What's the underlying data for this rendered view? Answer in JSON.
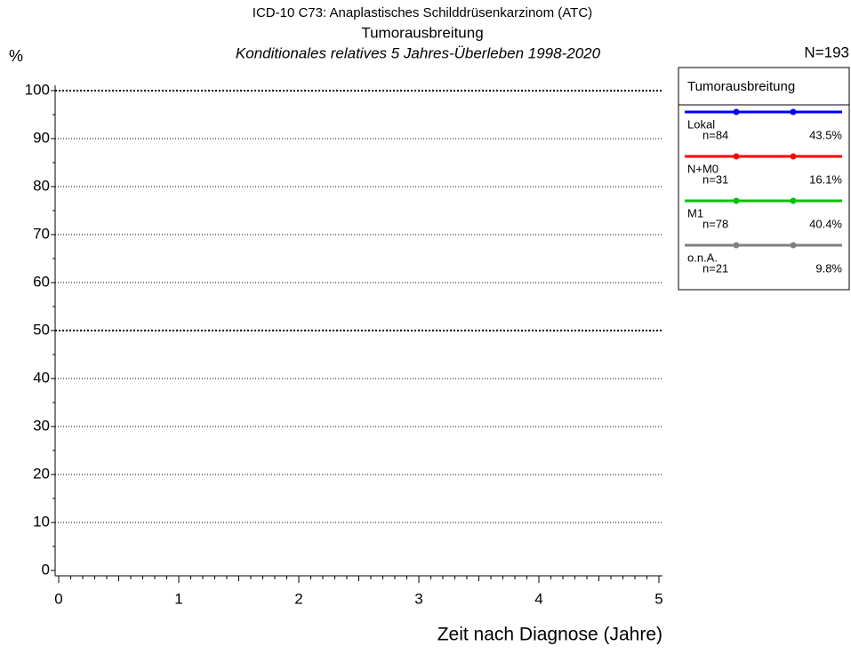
{
  "chart_data": {
    "type": "line",
    "title": "ICD-10 C73: Anaplastisches Schilddrüsenkarzinom (ATC)",
    "subtitle": "Tumorausbreitung",
    "subtitle2": "Konditionales relatives 5 Jahres-Überleben 1998-2020",
    "total_label": "N=193",
    "y_label": "%",
    "x_label": "Zeit nach Diagnose (Jahre)",
    "legend_title": "Tumorausbreitung",
    "legend_position": "right",
    "grid": true,
    "xlim": [
      0,
      5
    ],
    "xticks": [
      0,
      1,
      2,
      3,
      4,
      5
    ],
    "ylim": [
      0,
      100
    ],
    "yticks": [
      0,
      10,
      20,
      30,
      40,
      50,
      60,
      70,
      80,
      90,
      100
    ],
    "series": [
      {
        "name": "Lokal",
        "color": "#0000ff",
        "n_label": "n=84",
        "share_label": "43.5%"
      },
      {
        "name": "N+M0",
        "color": "#ff0000",
        "n_label": "n=31",
        "share_label": "16.1%"
      },
      {
        "name": "M1",
        "color": "#00c000",
        "n_label": "n=78",
        "share_label": "40.4%"
      },
      {
        "name": "o.n.A.",
        "color": "#808080",
        "n_label": "n=21",
        "share_label": "9.8%"
      }
    ]
  }
}
